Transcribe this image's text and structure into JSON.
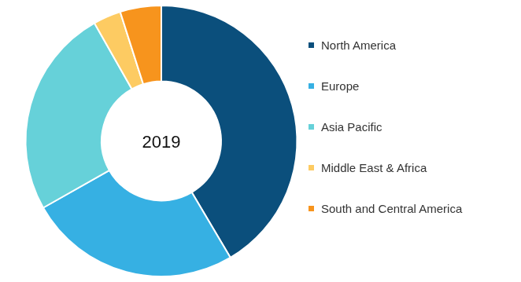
{
  "chart_data": {
    "type": "doughnut",
    "title": "2019",
    "categories": [
      "North America",
      "Europe",
      "Asia Pacific",
      "Middle East & Africa",
      "South and Central America"
    ],
    "values": [
      41.5,
      25.3,
      25.0,
      3.3,
      4.9
    ],
    "colors": [
      "#0b4f7c",
      "#36b0e3",
      "#66d1d9",
      "#fdcb62",
      "#f7941d"
    ],
    "legend": "right"
  }
}
